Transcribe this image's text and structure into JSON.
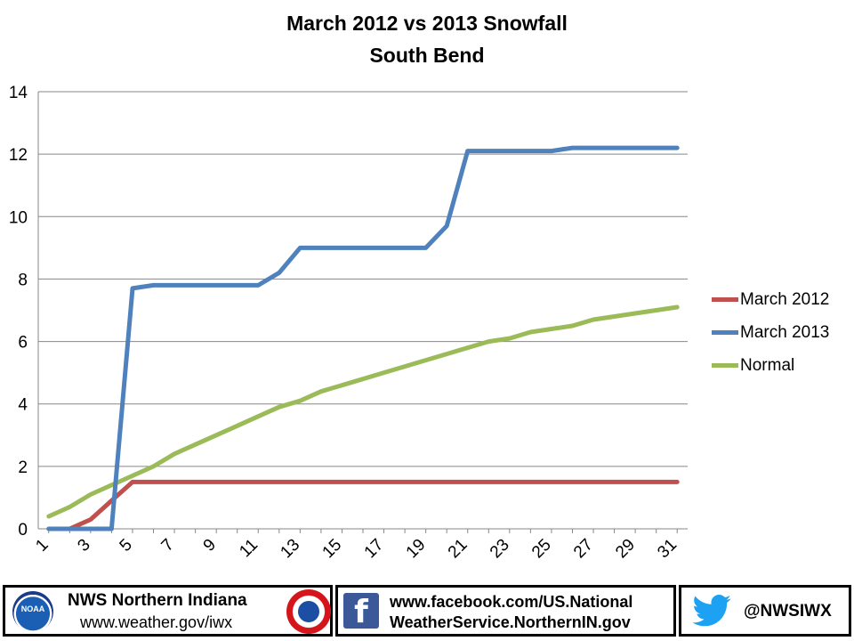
{
  "title_line1": "March 2012 vs 2013 Snowfall",
  "title_line2": "South Bend",
  "chart_data": {
    "type": "line",
    "title": "March 2012 vs 2013 Snowfall South Bend",
    "xlabel": "",
    "ylabel": "",
    "x": [
      1,
      2,
      3,
      4,
      5,
      6,
      7,
      8,
      9,
      10,
      11,
      12,
      13,
      14,
      15,
      16,
      17,
      18,
      19,
      20,
      21,
      22,
      23,
      24,
      25,
      26,
      27,
      28,
      29,
      30,
      31
    ],
    "x_tick_labels": [
      "1",
      "3",
      "5",
      "7",
      "9",
      "11",
      "13",
      "15",
      "17",
      "19",
      "21",
      "23",
      "25",
      "27",
      "29",
      "31"
    ],
    "ylim": [
      0,
      14
    ],
    "y_ticks": [
      0,
      2,
      4,
      6,
      8,
      10,
      12,
      14
    ],
    "grid": "horizontal",
    "legend_position": "right",
    "series": [
      {
        "name": "March 2012",
        "color": "#c0504d",
        "values": [
          0,
          0,
          0.3,
          0.9,
          1.5,
          1.5,
          1.5,
          1.5,
          1.5,
          1.5,
          1.5,
          1.5,
          1.5,
          1.5,
          1.5,
          1.5,
          1.5,
          1.5,
          1.5,
          1.5,
          1.5,
          1.5,
          1.5,
          1.5,
          1.5,
          1.5,
          1.5,
          1.5,
          1.5,
          1.5,
          1.5
        ]
      },
      {
        "name": "March 2013",
        "color": "#4f81bd",
        "values": [
          0,
          0,
          0,
          0,
          7.7,
          7.8,
          7.8,
          7.8,
          7.8,
          7.8,
          7.8,
          8.2,
          9.0,
          9.0,
          9.0,
          9.0,
          9.0,
          9.0,
          9.0,
          9.7,
          12.1,
          12.1,
          12.1,
          12.1,
          12.1,
          12.2,
          12.2,
          12.2,
          12.2,
          12.2,
          12.2
        ]
      },
      {
        "name": "Normal",
        "color": "#9bbb59",
        "values": [
          0.4,
          0.7,
          1.1,
          1.4,
          1.7,
          2.0,
          2.4,
          2.7,
          3.0,
          3.3,
          3.6,
          3.9,
          4.1,
          4.4,
          4.6,
          4.8,
          5.0,
          5.2,
          5.4,
          5.6,
          5.8,
          6.0,
          6.1,
          6.3,
          6.4,
          6.5,
          6.7,
          6.8,
          6.9,
          7.0,
          7.1
        ]
      }
    ]
  },
  "footer": {
    "noaa_logo_text": "NOAA",
    "office_name": "NWS Northern Indiana",
    "office_url": "www.weather.gov/iwx",
    "facebook_icon": "f",
    "facebook_line1": "www.facebook.com/US.National",
    "facebook_line2": "WeatherService.NorthernIN.gov",
    "twitter_handle": "@NWSIWX",
    "icons": [
      "noaa-logo",
      "nws-logo",
      "facebook-icon",
      "twitter-bird-icon"
    ]
  }
}
